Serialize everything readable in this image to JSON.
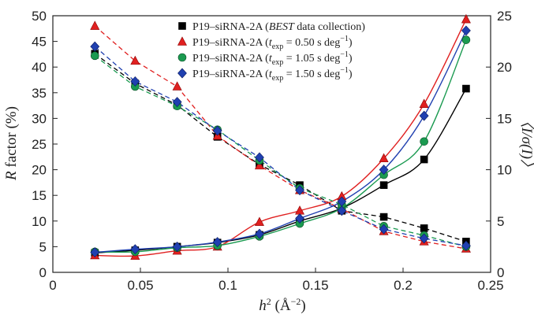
{
  "chart_data": {
    "type": "line",
    "x_axis": {
      "label_main": "h",
      "label_sup": "2",
      "label_unit": " (Å",
      "label_unit_sup": "−2",
      "label_close": ")",
      "range": [
        0,
        0.25
      ],
      "ticks": [
        0,
        0.05,
        0.1,
        0.15,
        0.2,
        0.25
      ],
      "tick_labels": [
        "0",
        "0.05",
        "0.1",
        "0.15",
        "0.2",
        "0.25"
      ]
    },
    "y_left_axis": {
      "label_italic": "R",
      "label_rest": " factor (%)",
      "range": [
        0,
        50
      ],
      "ticks": [
        0,
        5,
        10,
        15,
        20,
        25,
        30,
        35,
        40,
        45,
        50
      ],
      "tick_labels": [
        "0",
        "5",
        "10",
        "15",
        "20",
        "25",
        "30",
        "35",
        "40",
        "45",
        "50"
      ]
    },
    "y_right_axis": {
      "label": "〈I/σ(I)〉",
      "range": [
        0,
        25
      ],
      "ticks": [
        0,
        5,
        10,
        15,
        20,
        25
      ],
      "tick_labels": [
        "0",
        "5",
        "10",
        "15",
        "20",
        "25"
      ]
    },
    "x": [
      0.024,
      0.047,
      0.071,
      0.094,
      0.118,
      0.141,
      0.165,
      0.189,
      0.212,
      0.236
    ],
    "series": [
      {
        "name_pre": "P19–siRNA-2A (",
        "name_em": "BEST",
        "name_post": " data collection)",
        "color": "#000000",
        "marker": "square",
        "r_factor": [
          3.8,
          4.3,
          5.0,
          5.8,
          7.3,
          10.0,
          12.5,
          17.0,
          22.0,
          35.8
        ],
        "i_sigma": [
          21.3,
          18.4,
          16.3,
          13.2,
          10.5,
          8.5,
          6.0,
          5.4,
          4.3,
          3.0
        ]
      },
      {
        "name_pre": "P19–siRNA-2A (",
        "name_t": "t",
        "name_sub": "exp",
        "name_mid": " = 0.50 s deg",
        "name_sup": "−1",
        "name_close": ")",
        "color": "#e02020",
        "marker": "triangle",
        "r_factor": [
          3.3,
          3.2,
          4.2,
          5.0,
          9.8,
          12.0,
          14.8,
          22.2,
          32.8,
          49.3
        ],
        "i_sigma": [
          24.0,
          20.6,
          18.1,
          13.3,
          10.4,
          8.0,
          6.2,
          4.0,
          3.0,
          2.3
        ]
      },
      {
        "name_pre": "P19–siRNA-2A (",
        "name_t": "t",
        "name_sub": "exp",
        "name_mid": " = 1.05 s deg",
        "name_sup": "−1",
        "name_close": ")",
        "color": "#1a9a50",
        "marker": "circle",
        "r_factor": [
          4.0,
          4.0,
          4.8,
          5.2,
          7.0,
          9.5,
          12.5,
          19.0,
          25.5,
          45.3
        ],
        "i_sigma": [
          21.1,
          18.1,
          16.2,
          13.9,
          10.9,
          8.2,
          6.6,
          4.5,
          3.6,
          2.5
        ]
      },
      {
        "name_pre": "P19–siRNA-2A (",
        "name_t": "t",
        "name_sub": "exp",
        "name_mid": " = 1.50 s deg",
        "name_sup": "−1",
        "name_close": ")",
        "color": "#2040b0",
        "marker": "diamond",
        "r_factor": [
          3.9,
          4.5,
          5.0,
          5.9,
          7.5,
          10.5,
          13.8,
          20.0,
          30.5,
          47.1
        ],
        "i_sigma": [
          22.0,
          18.6,
          16.6,
          13.8,
          11.2,
          8.0,
          6.0,
          4.2,
          3.3,
          2.6
        ]
      }
    ],
    "styling": {
      "r_factor_lines": "solid",
      "i_sigma_lines": "dashed",
      "legend_position": "top-center",
      "grid": false
    }
  }
}
